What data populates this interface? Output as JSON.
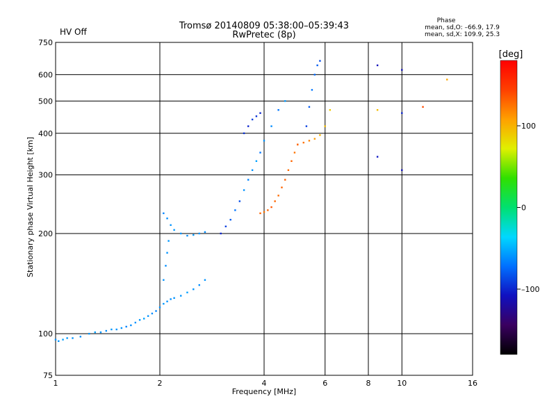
{
  "header": {
    "title_line1": "Tromsø 20140809 05:38:00–05:39:43",
    "title_line2": "RwPretec (8p)",
    "hv_status": "HV Off",
    "hv_color": "#cc0000",
    "phase_title": "Phase",
    "phase_stats_o": "mean, sd,O: –66.9, 17.9",
    "phase_stats_x": "mean, sd,X: 109.9, 25.3"
  },
  "colorbar": {
    "unit_label": "[deg]",
    "ticks": [
      {
        "label": "100",
        "value": 100
      },
      {
        "label": "0",
        "value": 0
      },
      {
        "label": "–100",
        "value": -100
      }
    ],
    "range": [
      -180,
      180
    ],
    "colors": [
      "#000000",
      "#3a0060",
      "#1010c0",
      "#0070ff",
      "#00d8ff",
      "#00e070",
      "#30e000",
      "#e0f000",
      "#ffa000",
      "#ff4000",
      "#ff0000"
    ]
  },
  "chart_data": {
    "type": "scatter",
    "title": "Tromsø 20140809 05:38:00–05:39:43",
    "subtitle": "RwPretec (8p)",
    "xlabel": "Frequency [MHz]",
    "ylabel": "Stationary phase Virtual Height [km]",
    "x_scale": "log",
    "y_scale": "log",
    "xlim": [
      1,
      16
    ],
    "ylim": [
      75,
      750
    ],
    "x_ticks": [
      1,
      2,
      4,
      6,
      8,
      10,
      16
    ],
    "y_ticks": [
      75,
      100,
      200,
      300,
      400,
      500,
      600,
      750
    ],
    "grid": true,
    "color_variable": "phase [deg]",
    "series": [
      {
        "freq": [
          1.0,
          1.02,
          1.05,
          1.08,
          1.12,
          1.18,
          1.25,
          1.3,
          1.35,
          1.4,
          1.45,
          1.5,
          1.55,
          1.6,
          1.65,
          1.7,
          1.75,
          1.8,
          1.85,
          1.9,
          1.95,
          2.0,
          2.05,
          2.1,
          2.15,
          2.2,
          2.3,
          2.4,
          2.5,
          2.6,
          2.7
        ],
        "height": [
          96,
          95,
          96,
          97,
          97,
          98,
          100,
          101,
          101,
          102,
          103,
          103,
          104,
          105,
          106,
          108,
          110,
          111,
          113,
          115,
          117,
          120,
          123,
          125,
          127,
          128,
          130,
          133,
          136,
          140,
          145
        ],
        "phase": [
          -60,
          -60,
          -55,
          -58,
          -60,
          -62,
          -58,
          -55,
          -60,
          -62,
          -58,
          -60,
          -60,
          -65,
          -62,
          -60,
          -58,
          -55,
          -60,
          -62,
          -65,
          -60,
          -58,
          -60,
          -62,
          -60,
          -58,
          -55,
          -60,
          -62,
          -60
        ]
      },
      {
        "freq": [
          2.05,
          2.1,
          2.15,
          2.2,
          2.3,
          2.4,
          2.5,
          2.6,
          2.7
        ],
        "height": [
          230,
          222,
          212,
          205,
          200,
          197,
          198,
          200,
          202
        ],
        "phase": [
          -65,
          -62,
          -60,
          -58,
          -60,
          -62,
          -58,
          -60,
          -62
        ]
      },
      {
        "freq": [
          2.05,
          2.08,
          2.1,
          2.12
        ],
        "height": [
          145,
          160,
          175,
          190
        ],
        "phase": [
          -60,
          -62,
          -60,
          -58
        ]
      },
      {
        "freq": [
          3.0,
          3.1,
          3.2,
          3.3,
          3.4,
          3.5,
          3.6,
          3.7,
          3.8,
          3.9,
          4.0,
          4.2,
          4.4,
          4.6
        ],
        "height": [
          200,
          210,
          220,
          235,
          250,
          270,
          290,
          310,
          330,
          350,
          380,
          420,
          470,
          500
        ],
        "phase": [
          -100,
          -90,
          -80,
          -70,
          -85,
          -60,
          -65,
          -60,
          -55,
          -70,
          -60,
          -62,
          -70,
          -58
        ]
      },
      {
        "freq": [
          3.5,
          3.6,
          3.7,
          3.8,
          3.9
        ],
        "height": [
          400,
          420,
          440,
          450,
          460
        ],
        "phase": [
          -95,
          -100,
          -90,
          -95,
          -100
        ]
      },
      {
        "freq": [
          3.9,
          4.0,
          4.1,
          4.2,
          4.3,
          4.4,
          4.5,
          4.6,
          4.7,
          4.8,
          4.9,
          5.0
        ],
        "height": [
          230,
          232,
          235,
          240,
          250,
          260,
          275,
          290,
          310,
          330,
          350,
          370
        ],
        "phase": [
          130,
          125,
          130,
          135,
          130,
          128,
          130,
          132,
          128,
          130,
          125,
          130
        ]
      },
      {
        "freq": [
          5.0,
          5.2,
          5.4,
          5.6,
          5.8,
          6.0,
          6.2
        ],
        "height": [
          370,
          375,
          380,
          385,
          395,
          420,
          470
        ],
        "phase": [
          130,
          125,
          120,
          110,
          100,
          95,
          90
        ]
      },
      {
        "freq": [
          5.3,
          5.4,
          5.5,
          5.6,
          5.7,
          5.8
        ],
        "height": [
          420,
          480,
          540,
          600,
          640,
          660
        ],
        "phase": [
          -90,
          -80,
          -70,
          -75,
          -80,
          -85
        ]
      },
      {
        "freq": [
          8.5,
          8.5,
          8.5,
          10.0,
          10.0,
          10.0,
          11.5,
          13.5
        ],
        "height": [
          640,
          470,
          340,
          620,
          460,
          310,
          480,
          580
        ],
        "phase": [
          -110,
          95,
          -105,
          -110,
          -100,
          -110,
          140,
          105
        ]
      }
    ]
  }
}
